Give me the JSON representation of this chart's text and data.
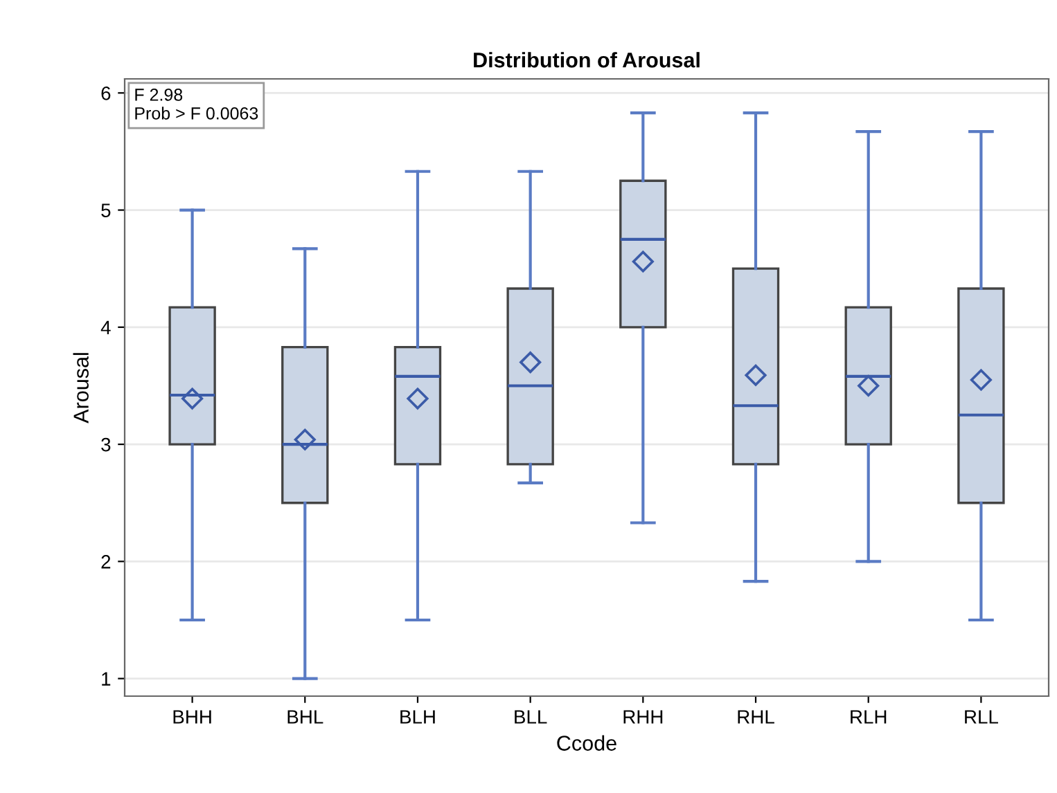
{
  "chart_data": {
    "type": "box",
    "title": "Distribution of Arousal",
    "xlabel": "Ccode",
    "ylabel": "Arousal",
    "categories": [
      "BHH",
      "BHL",
      "BLH",
      "BLL",
      "RHH",
      "RHL",
      "RLH",
      "RLL"
    ],
    "boxes": [
      {
        "low": 1.5,
        "q1": 3.0,
        "median": 3.42,
        "q3": 4.17,
        "high": 5.0,
        "mean": 3.39
      },
      {
        "low": 1.0,
        "q1": 2.5,
        "median": 3.0,
        "q3": 3.83,
        "high": 4.67,
        "mean": 3.04
      },
      {
        "low": 1.5,
        "q1": 2.83,
        "median": 3.58,
        "q3": 3.83,
        "high": 5.33,
        "mean": 3.39
      },
      {
        "low": 2.67,
        "q1": 2.83,
        "median": 3.5,
        "q3": 4.33,
        "high": 5.33,
        "mean": 3.7
      },
      {
        "low": 2.33,
        "q1": 4.0,
        "median": 4.75,
        "q3": 5.25,
        "high": 5.83,
        "mean": 4.56
      },
      {
        "low": 1.83,
        "q1": 2.83,
        "median": 3.33,
        "q3": 4.5,
        "high": 5.83,
        "mean": 3.59
      },
      {
        "low": 2.0,
        "q1": 3.0,
        "median": 3.58,
        "q3": 4.17,
        "high": 5.67,
        "mean": 3.5
      },
      {
        "low": 1.5,
        "q1": 2.5,
        "median": 3.25,
        "q3": 4.33,
        "high": 5.67,
        "mean": 3.55
      }
    ],
    "color": "#cad5e5",
    "ylim": [
      0.85,
      6.12
    ],
    "yticks": [
      1,
      2,
      3,
      4,
      5,
      6
    ],
    "grid": "y",
    "marker": "diamond",
    "annotations": [
      "F 2.98",
      "Prob > F 0.0063"
    ]
  }
}
